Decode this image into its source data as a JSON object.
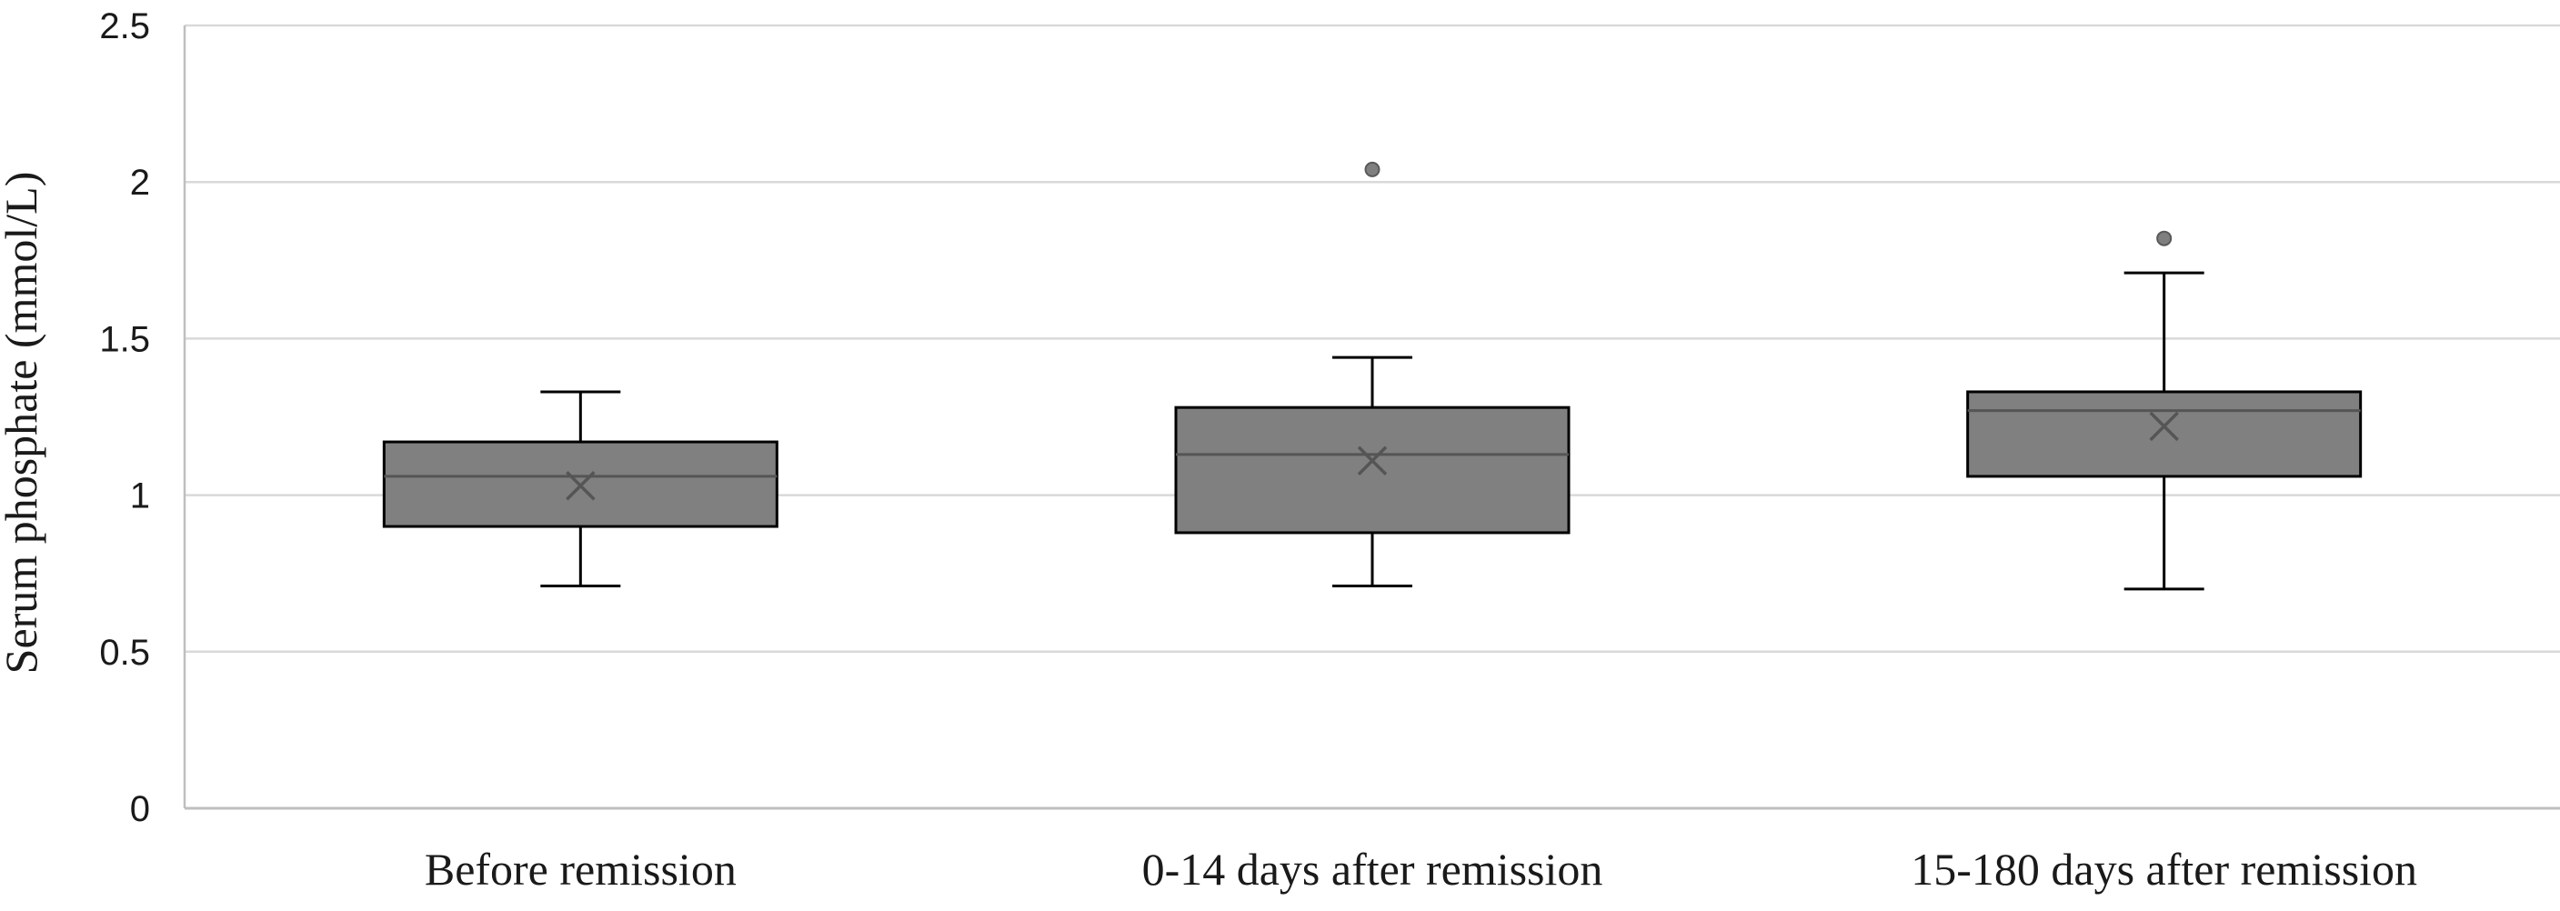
{
  "chart_data": {
    "type": "box",
    "title": "",
    "xlabel": "",
    "ylabel": "Serum phosphate (mmol/L)",
    "ylim": [
      0,
      2.5
    ],
    "yticks": [
      0,
      0.5,
      1,
      1.5,
      2,
      2.5
    ],
    "ytick_labels": [
      "0",
      "0.5",
      "1",
      "1.5",
      "2",
      "2.5"
    ],
    "grid": true,
    "legend": "none",
    "categories": [
      "Before remission",
      "0-14 days after remission",
      "15-180 days after remission"
    ],
    "boxes": [
      {
        "category": "Before remission",
        "whisker_low": 0.71,
        "q1": 0.9,
        "median": 1.06,
        "q3": 1.17,
        "whisker_high": 1.33,
        "mean": 1.03,
        "outliers": []
      },
      {
        "category": "0-14 days after remission",
        "whisker_low": 0.71,
        "q1": 0.88,
        "median": 1.13,
        "q3": 1.28,
        "whisker_high": 1.44,
        "mean": 1.11,
        "outliers": [
          2.04
        ]
      },
      {
        "category": "15-180 days after remission",
        "whisker_low": 0.7,
        "q1": 1.06,
        "median": 1.27,
        "q3": 1.33,
        "whisker_high": 1.71,
        "mean": 1.22,
        "outliers": [
          1.82
        ]
      }
    ],
    "colors": {
      "box_fill": "#808080",
      "box_stroke": "#000000",
      "median_line": "#555555",
      "mean_marker": "#555555",
      "outlier_fill": "#7f7f7f",
      "grid": "#d9d9d9",
      "axis": "#bfbfbf"
    }
  }
}
